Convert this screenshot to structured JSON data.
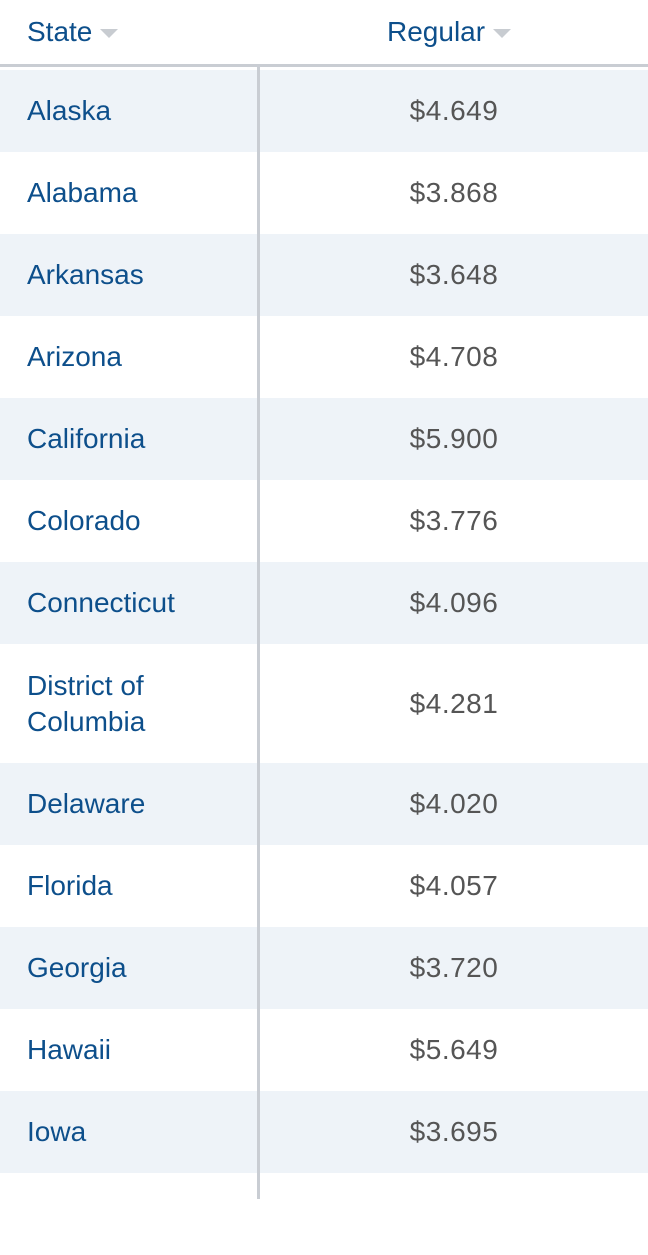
{
  "table": {
    "columns": [
      {
        "label": "State"
      },
      {
        "label": "Regular"
      }
    ],
    "rows": [
      {
        "state": "Alaska",
        "regular": "$4.649"
      },
      {
        "state": "Alabama",
        "regular": "$3.868"
      },
      {
        "state": "Arkansas",
        "regular": "$3.648"
      },
      {
        "state": "Arizona",
        "regular": "$4.708"
      },
      {
        "state": "California",
        "regular": "$5.900"
      },
      {
        "state": "Colorado",
        "regular": "$3.776"
      },
      {
        "state": "Connecticut",
        "regular": "$4.096"
      },
      {
        "state": "District of Columbia",
        "regular": "$4.281"
      },
      {
        "state": "Delaware",
        "regular": "$4.020"
      },
      {
        "state": "Florida",
        "regular": "$4.057"
      },
      {
        "state": "Georgia",
        "regular": "$3.720"
      },
      {
        "state": "Hawaii",
        "regular": "$5.649"
      },
      {
        "state": "Iowa",
        "regular": "$3.695"
      }
    ]
  },
  "colors": {
    "link_blue": "#0d4f8b",
    "stripe": "#eef3f8",
    "price_gray": "#555555",
    "border": "#c9cdd3"
  },
  "icons": {
    "sort": "chevron-down-icon"
  }
}
